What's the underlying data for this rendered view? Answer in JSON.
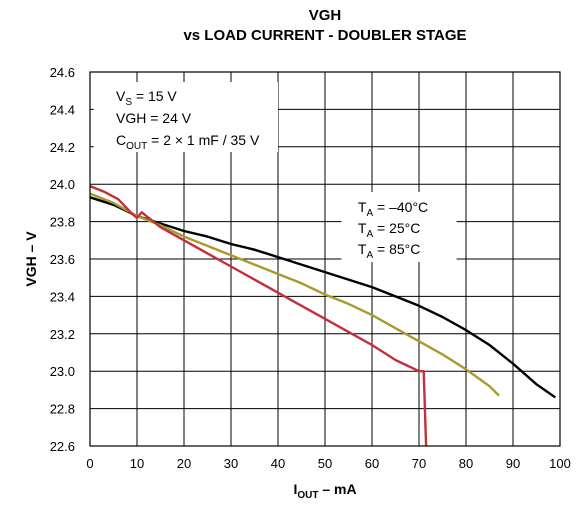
{
  "chart_data": {
    "type": "line",
    "title": "VGH",
    "subtitle": "vs LOAD CURRENT - DOUBLER STAGE",
    "xlabel": {
      "main": "I",
      "sub": "OUT",
      "rest": " – mA"
    },
    "ylabel": "VGH – V",
    "xlim": [
      0,
      100
    ],
    "ylim": [
      22.6,
      24.6
    ],
    "x_ticks": [
      "0",
      "10",
      "20",
      "30",
      "40",
      "50",
      "60",
      "70",
      "80",
      "90",
      "100"
    ],
    "y_ticks": [
      "22.6",
      "22.8",
      "23.0",
      "23.2",
      "23.4",
      "23.6",
      "23.8",
      "24.0",
      "24.2",
      "24.4",
      "24.6"
    ],
    "grid": true,
    "conditions": [
      {
        "main": "V",
        "sub": "S",
        "rest": " = 15 V"
      },
      {
        "main": "VGH = 24 V",
        "sub": "",
        "rest": ""
      },
      {
        "main": "C",
        "sub": "OUT",
        "rest": " = 2 × 1 mF / 35 V"
      }
    ],
    "legend_placement": "right-middle",
    "series": [
      {
        "name": {
          "main": "T",
          "sub": "A",
          "rest": " = –40°C"
        },
        "color": "#000000",
        "points": [
          [
            0,
            23.93
          ],
          [
            5,
            23.89
          ],
          [
            10,
            23.83
          ],
          [
            15,
            23.79
          ],
          [
            20,
            23.75
          ],
          [
            25,
            23.72
          ],
          [
            30,
            23.68
          ],
          [
            35,
            23.65
          ],
          [
            40,
            23.61
          ],
          [
            45,
            23.57
          ],
          [
            50,
            23.53
          ],
          [
            55,
            23.49
          ],
          [
            60,
            23.45
          ],
          [
            65,
            23.4
          ],
          [
            70,
            23.35
          ],
          [
            75,
            23.29
          ],
          [
            80,
            23.22
          ],
          [
            85,
            23.14
          ],
          [
            90,
            23.04
          ],
          [
            95,
            22.93
          ],
          [
            99,
            22.86
          ]
        ]
      },
      {
        "name": {
          "main": "T",
          "sub": "A",
          "rest": " = 25°C"
        },
        "color": "#a89a2c",
        "points": [
          [
            0,
            23.95
          ],
          [
            5,
            23.9
          ],
          [
            10,
            23.83
          ],
          [
            15,
            23.78
          ],
          [
            20,
            23.72
          ],
          [
            25,
            23.67
          ],
          [
            30,
            23.62
          ],
          [
            35,
            23.57
          ],
          [
            40,
            23.52
          ],
          [
            45,
            23.47
          ],
          [
            50,
            23.41
          ],
          [
            55,
            23.36
          ],
          [
            60,
            23.3
          ],
          [
            65,
            23.23
          ],
          [
            70,
            23.16
          ],
          [
            75,
            23.09
          ],
          [
            80,
            23.01
          ],
          [
            85,
            22.92
          ],
          [
            87,
            22.87
          ]
        ]
      },
      {
        "name": {
          "main": "T",
          "sub": "A",
          "rest": " = 85°C"
        },
        "color": "#c0313a",
        "points": [
          [
            0,
            23.99
          ],
          [
            3,
            23.96
          ],
          [
            6,
            23.92
          ],
          [
            9,
            23.84
          ],
          [
            10,
            23.82
          ],
          [
            11,
            23.85
          ],
          [
            15,
            23.77
          ],
          [
            20,
            23.7
          ],
          [
            25,
            23.63
          ],
          [
            30,
            23.56
          ],
          [
            35,
            23.49
          ],
          [
            40,
            23.42
          ],
          [
            45,
            23.35
          ],
          [
            50,
            23.28
          ],
          [
            55,
            23.21
          ],
          [
            60,
            23.14
          ],
          [
            65,
            23.06
          ],
          [
            70,
            23.0
          ],
          [
            71,
            23.0
          ],
          [
            71.5,
            22.6
          ]
        ]
      }
    ]
  }
}
